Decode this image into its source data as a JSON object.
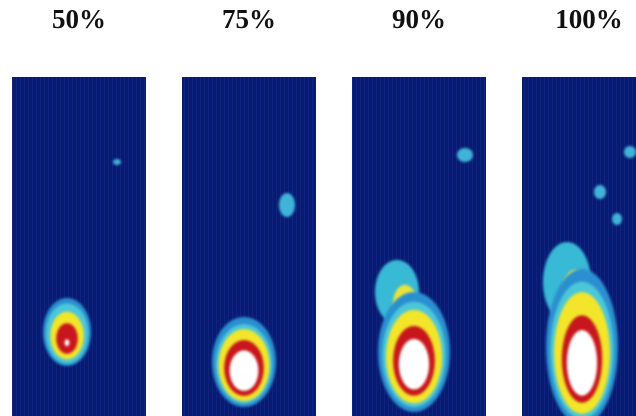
{
  "panels": [
    {
      "label": "50%"
    },
    {
      "label": "75%"
    },
    {
      "label": "90%"
    },
    {
      "label": "100%"
    }
  ]
}
